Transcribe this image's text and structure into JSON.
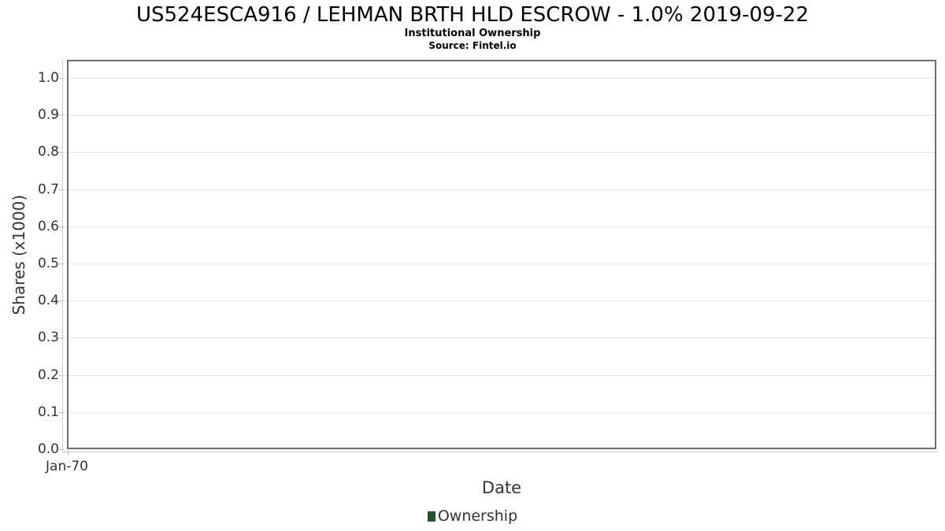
{
  "chart_data": {
    "type": "line",
    "title": "US524ESCA916 / LEHMAN BRTH HLD ESCROW - 1.0% 2019-09-22",
    "subtitle": "Institutional Ownership",
    "source_note": "Source: Fintel.io",
    "xlabel": "Date",
    "ylabel": "Shares (x1000)",
    "x_tick_labels": [
      "Jan-70"
    ],
    "y_tick_labels": [
      "1.0",
      "0.9",
      "0.8",
      "0.7",
      "0.6",
      "0.5",
      "0.4",
      "0.3",
      "0.2",
      "0.1",
      "0.0"
    ],
    "ylim": [
      0.0,
      1.05
    ],
    "grid": true,
    "legend_position": "bottom-center",
    "series": [
      {
        "name": "Ownership",
        "color": "#26522b",
        "x": [],
        "values": []
      }
    ]
  },
  "colors": {
    "plot_border": "#6e6e6e",
    "gridline": "#e6e6e6",
    "axis_line": "#cccccc",
    "tick_mark": "#c4c4c4",
    "text_primary": "#000000",
    "text_axis": "#333333",
    "legend_marker": "#26522b",
    "background": "#ffffff"
  }
}
